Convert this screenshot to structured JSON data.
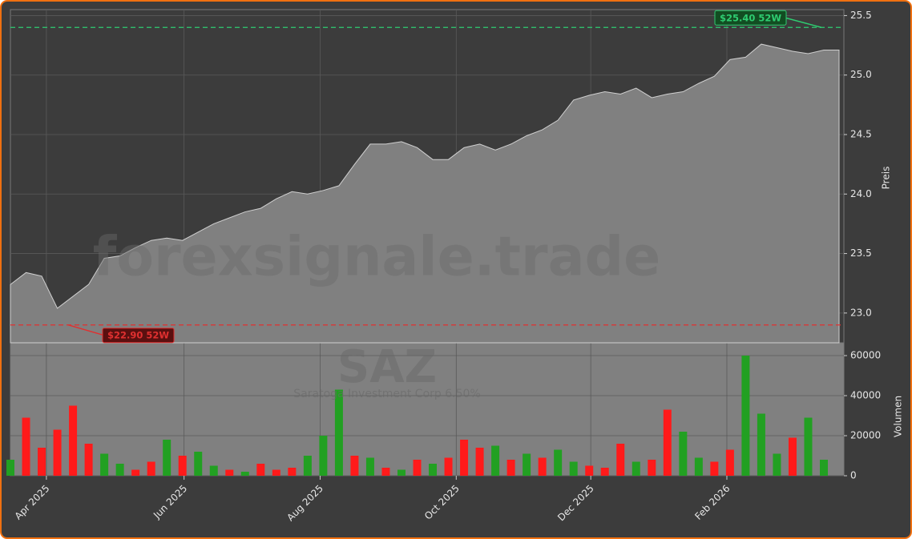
{
  "chart_data": [
    {
      "type": "area",
      "y_label": "Preis",
      "watermark": "forexsignale.trade",
      "categories": [
        null,
        null,
        null,
        null,
        null,
        null,
        null,
        null,
        null,
        null,
        null,
        null,
        null,
        null,
        null,
        null,
        null,
        null,
        null,
        null,
        null,
        null,
        null,
        null,
        null,
        null,
        null,
        null,
        null,
        null,
        null,
        null,
        null,
        null,
        null,
        null,
        null,
        null,
        null,
        null,
        null,
        null,
        null,
        null,
        null,
        null,
        null,
        null,
        null,
        null,
        null,
        null,
        null
      ],
      "values": [
        23.24,
        23.34,
        23.31,
        23.04,
        23.14,
        23.24,
        23.46,
        23.48,
        23.55,
        23.61,
        23.63,
        23.61,
        23.68,
        23.75,
        23.8,
        23.85,
        23.88,
        23.96,
        24.02,
        24.0,
        24.03,
        24.07,
        24.25,
        24.42,
        24.42,
        24.44,
        24.39,
        24.29,
        24.29,
        24.39,
        24.42,
        24.37,
        24.42,
        24.49,
        24.54,
        24.62,
        24.79,
        24.83,
        24.86,
        24.84,
        24.89,
        24.81,
        24.84,
        24.86,
        24.93,
        24.99,
        25.13,
        25.15,
        25.26,
        25.23,
        25.2,
        25.18,
        25.21
      ],
      "color": "#808080",
      "line_color": "#d0d0d0",
      "ylim": [
        22.75,
        25.55
      ],
      "yticks": [
        {
          "value": 23,
          "label": "23.0"
        },
        23.5,
        {
          "value": 24,
          "label": "24.0"
        },
        24.5,
        {
          "value": 25,
          "label": "25.0"
        },
        25.5
      ],
      "grid": true,
      "reference_lines": [
        {
          "value": 25.4,
          "label": "$25.40 52W",
          "color": "#2ecc71"
        },
        {
          "value": 22.9,
          "label": "$22.90 52W",
          "color": "#e03030"
        }
      ]
    },
    {
      "type": "bar",
      "y_label": "Volumen",
      "title": "SAZ",
      "subtitle": "Saratoga Investment Corp 6.50%",
      "categories": [
        null,
        null,
        null,
        null,
        null,
        null,
        null,
        null,
        null,
        null,
        null,
        null,
        null,
        null,
        null,
        null,
        null,
        null,
        null,
        null,
        null,
        null,
        null,
        null,
        null,
        null,
        null,
        null,
        null,
        null,
        null,
        null,
        null,
        null,
        null,
        null,
        null,
        null,
        null,
        null,
        null,
        null,
        null,
        null,
        null,
        null,
        null,
        null,
        null,
        null,
        null,
        null,
        null
      ],
      "values": [
        8000,
        29000,
        14000,
        23000,
        35000,
        16000,
        11000,
        6000,
        3000,
        7000,
        18000,
        10000,
        12000,
        5000,
        3000,
        2000,
        6000,
        3000,
        4000,
        10000,
        20000,
        43000,
        10000,
        9000,
        4000,
        3000,
        8000,
        6000,
        9000,
        18000,
        14000,
        15000,
        8000,
        11000,
        9000,
        13000,
        7000,
        5000,
        4000,
        16000,
        7000,
        8000,
        33000,
        22000,
        9000,
        7000,
        13000,
        60000,
        31000,
        11000,
        19000,
        29000,
        8000
      ],
      "colors": [
        "#22a022",
        "#ff1a1a",
        "#ff1a1a",
        "#ff1a1a",
        "#ff1a1a",
        "#ff1a1a",
        "#22a022",
        "#22a022",
        "#ff1a1a",
        "#ff1a1a",
        "#22a022",
        "#ff1a1a",
        "#22a022",
        "#22a022",
        "#ff1a1a",
        "#22a022",
        "#ff1a1a",
        "#ff1a1a",
        "#ff1a1a",
        "#22a022",
        "#22a022",
        "#22a022",
        "#ff1a1a",
        "#22a022",
        "#ff1a1a",
        "#22a022",
        "#ff1a1a",
        "#22a022",
        "#ff1a1a",
        "#ff1a1a",
        "#ff1a1a",
        "#22a022",
        "#ff1a1a",
        "#22a022",
        "#ff1a1a",
        "#22a022",
        "#22a022",
        "#ff1a1a",
        "#ff1a1a",
        "#ff1a1a",
        "#22a022",
        "#ff1a1a",
        "#ff1a1a",
        "#22a022",
        "#22a022",
        "#ff1a1a",
        "#ff1a1a",
        "#22a022",
        "#22a022",
        "#22a022",
        "#ff1a1a",
        "#22a022",
        "#22a022"
      ],
      "ylim": [
        0,
        66400
      ],
      "yticks": [
        0,
        20000,
        40000,
        60000
      ],
      "xticks": [
        {
          "value": 2.3,
          "label": "Apr 2025"
        },
        {
          "value": 11.1,
          "label": "Jun 2025"
        },
        {
          "value": 19.8,
          "label": "Aug 2025"
        },
        {
          "value": 28.5,
          "label": "Oct 2025"
        },
        {
          "value": 37.1,
          "label": "Dec 2025"
        },
        {
          "value": 45.8,
          "label": "Feb 2026"
        }
      ],
      "grid": true
    }
  ]
}
